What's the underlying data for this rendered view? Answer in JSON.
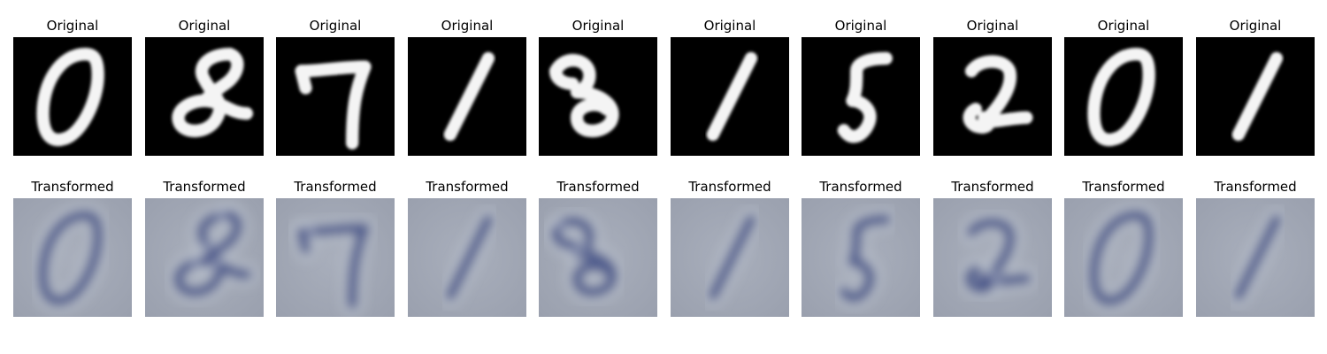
{
  "figure": {
    "rows": [
      {
        "key": "original",
        "panels": [
          {
            "title": "Original",
            "digit_icon": "digit-0-icon"
          },
          {
            "title": "Original",
            "digit_icon": "digit-8-icon"
          },
          {
            "title": "Original",
            "digit_icon": "digit-7-icon"
          },
          {
            "title": "Original",
            "digit_icon": "digit-1-icon"
          },
          {
            "title": "Original",
            "digit_icon": "digit-3-icon"
          },
          {
            "title": "Original",
            "digit_icon": "digit-1-icon"
          },
          {
            "title": "Original",
            "digit_icon": "digit-5-icon"
          },
          {
            "title": "Original",
            "digit_icon": "digit-2-icon"
          },
          {
            "title": "Original",
            "digit_icon": "digit-0-icon"
          },
          {
            "title": "Original",
            "digit_icon": "digit-1-icon"
          }
        ]
      },
      {
        "key": "transformed",
        "panels": [
          {
            "title": "Transformed",
            "digit_icon": "digit-0-icon"
          },
          {
            "title": "Transformed",
            "digit_icon": "digit-8-icon"
          },
          {
            "title": "Transformed",
            "digit_icon": "digit-7-icon"
          },
          {
            "title": "Transformed",
            "digit_icon": "digit-1-icon"
          },
          {
            "title": "Transformed",
            "digit_icon": "digit-3-icon"
          },
          {
            "title": "Transformed",
            "digit_icon": "digit-1-icon"
          },
          {
            "title": "Transformed",
            "digit_icon": "digit-5-icon"
          },
          {
            "title": "Transformed",
            "digit_icon": "digit-2-icon"
          },
          {
            "title": "Transformed",
            "digit_icon": "digit-0-icon"
          },
          {
            "title": "Transformed",
            "digit_icon": "digit-1-icon"
          }
        ]
      }
    ],
    "colors": {
      "original_background": "#000000",
      "original_stroke": "#f4f4f4",
      "transformed_background": "#9aa0ae",
      "transformed_stroke": "#2f3d7a"
    }
  }
}
